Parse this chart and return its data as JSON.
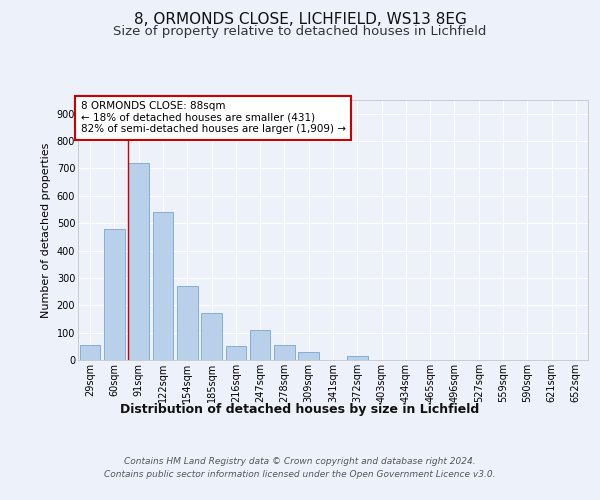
{
  "title1": "8, ORMONDS CLOSE, LICHFIELD, WS13 8EG",
  "title2": "Size of property relative to detached houses in Lichfield",
  "xlabel": "Distribution of detached houses by size in Lichfield",
  "ylabel": "Number of detached properties",
  "categories": [
    "29sqm",
    "60sqm",
    "91sqm",
    "122sqm",
    "154sqm",
    "185sqm",
    "216sqm",
    "247sqm",
    "278sqm",
    "309sqm",
    "341sqm",
    "372sqm",
    "403sqm",
    "434sqm",
    "465sqm",
    "496sqm",
    "527sqm",
    "559sqm",
    "590sqm",
    "621sqm",
    "652sqm"
  ],
  "values": [
    55,
    480,
    720,
    540,
    270,
    170,
    50,
    110,
    55,
    30,
    0,
    15,
    0,
    0,
    0,
    0,
    0,
    0,
    0,
    0,
    0
  ],
  "bar_color": "#b8d0ea",
  "bar_edge_color": "#6699cc",
  "subject_line_color": "#cc0000",
  "subject_bar_index": 2,
  "annotation_text": "8 ORMONDS CLOSE: 88sqm\n← 18% of detached houses are smaller (431)\n82% of semi-detached houses are larger (1,909) →",
  "annotation_box_edgecolor": "#cc0000",
  "ylim": [
    0,
    950
  ],
  "yticks": [
    0,
    100,
    200,
    300,
    400,
    500,
    600,
    700,
    800,
    900
  ],
  "footer": "Contains HM Land Registry data © Crown copyright and database right 2024.\nContains public sector information licensed under the Open Government Licence v3.0.",
  "background_color": "#edf2fa",
  "plot_background_color": "#edf2fa",
  "grid_color": "#ffffff",
  "title1_fontsize": 11,
  "title2_fontsize": 9.5,
  "xlabel_fontsize": 9,
  "ylabel_fontsize": 8,
  "tick_fontsize": 7,
  "annotation_fontsize": 7.5,
  "footer_fontsize": 6.5
}
